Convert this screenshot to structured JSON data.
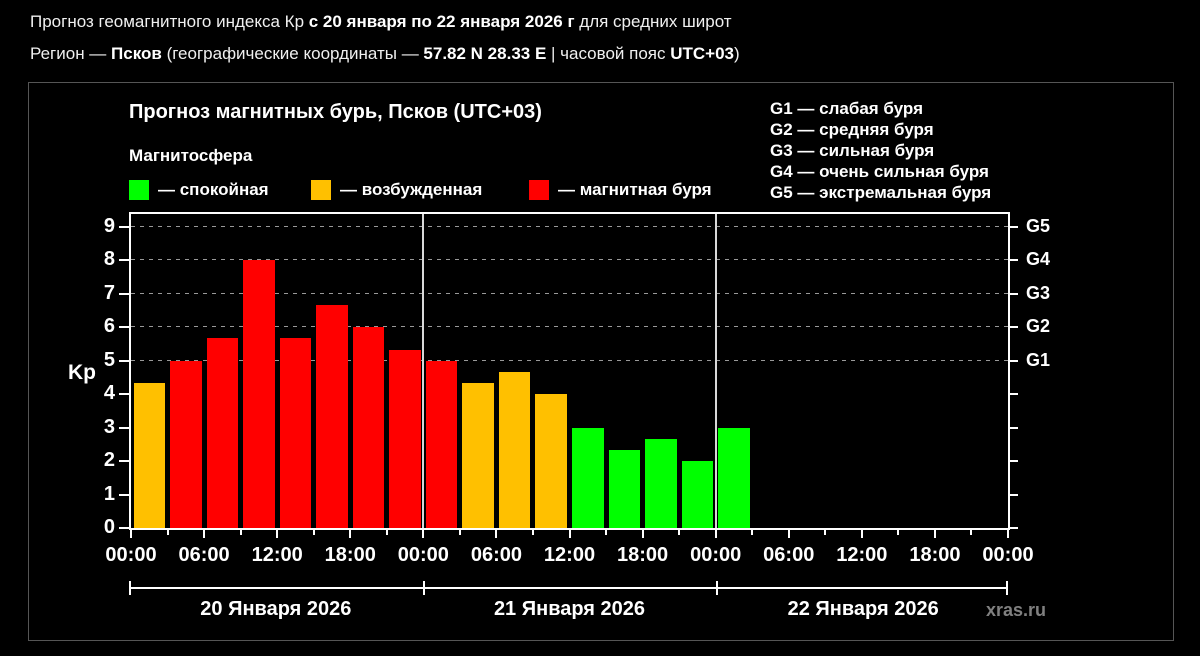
{
  "header": {
    "line1": {
      "a": "Прогноз геомагнитного индекса Кр ",
      "b": "с 20 января по 22 января 2026 г",
      "c": " для средних широт"
    },
    "line2": {
      "a": "Регион — ",
      "b": "Псков",
      "c": " (географические координаты — ",
      "d": "57.82 N 28.33 E",
      "e": " | часовой пояс ",
      "f": "UTC+03",
      "g": ")"
    }
  },
  "chart_data": {
    "type": "bar",
    "title": "Прогноз магнитных бурь, Псков (UTC+03)",
    "subtitle": "Магнитосфера",
    "ylabel": "Kp",
    "ylim": [
      0,
      9
    ],
    "y_ticks": [
      0,
      1,
      2,
      3,
      4,
      5,
      6,
      7,
      8,
      9
    ],
    "gridlines_at": [
      5,
      6,
      7,
      8,
      9
    ],
    "grid": "dashed",
    "right_axis": [
      {
        "kp": 5,
        "label": "G1"
      },
      {
        "kp": 6,
        "label": "G2"
      },
      {
        "kp": 7,
        "label": "G3"
      },
      {
        "kp": 8,
        "label": "G4"
      },
      {
        "kp": 9,
        "label": "G5"
      }
    ],
    "legend": [
      {
        "level": "quiet",
        "label": "— спокойная"
      },
      {
        "level": "excited",
        "label": "— возбужденная"
      },
      {
        "level": "storm",
        "label": "— магнитная буря"
      }
    ],
    "colors": {
      "quiet": "#00ff00",
      "excited": "#ffc000",
      "storm": "#ff0000"
    },
    "g_legend": [
      "G1 — слабая буря",
      "G2 — средняя буря",
      "G3 — сильная буря",
      "G4 — очень сильная буря",
      "G5 — экстремальная буря"
    ],
    "x_tick_labels": [
      "00:00",
      "06:00",
      "12:00",
      "18:00",
      "00:00",
      "06:00",
      "12:00",
      "18:00",
      "00:00",
      "06:00",
      "12:00",
      "18:00",
      "00:00"
    ],
    "hours_per_bar": 3,
    "slots_total": 24,
    "days": [
      "20 Января 2026",
      "21 Января 2026",
      "22 Января 2026"
    ],
    "bars": [
      {
        "value": 4.33,
        "level": "excited"
      },
      {
        "value": 5.0,
        "level": "storm"
      },
      {
        "value": 5.67,
        "level": "storm"
      },
      {
        "value": 8.0,
        "level": "storm"
      },
      {
        "value": 5.67,
        "level": "storm"
      },
      {
        "value": 6.67,
        "level": "storm"
      },
      {
        "value": 6.0,
        "level": "storm"
      },
      {
        "value": 5.33,
        "level": "storm"
      },
      {
        "value": 5.0,
        "level": "storm"
      },
      {
        "value": 4.33,
        "level": "excited"
      },
      {
        "value": 4.67,
        "level": "excited"
      },
      {
        "value": 4.0,
        "level": "excited"
      },
      {
        "value": 3.0,
        "level": "quiet"
      },
      {
        "value": 2.33,
        "level": "quiet"
      },
      {
        "value": 2.67,
        "level": "quiet"
      },
      {
        "value": 2.0,
        "level": "quiet"
      },
      {
        "value": 3.0,
        "level": "quiet"
      }
    ],
    "watermark": "xras.ru"
  }
}
